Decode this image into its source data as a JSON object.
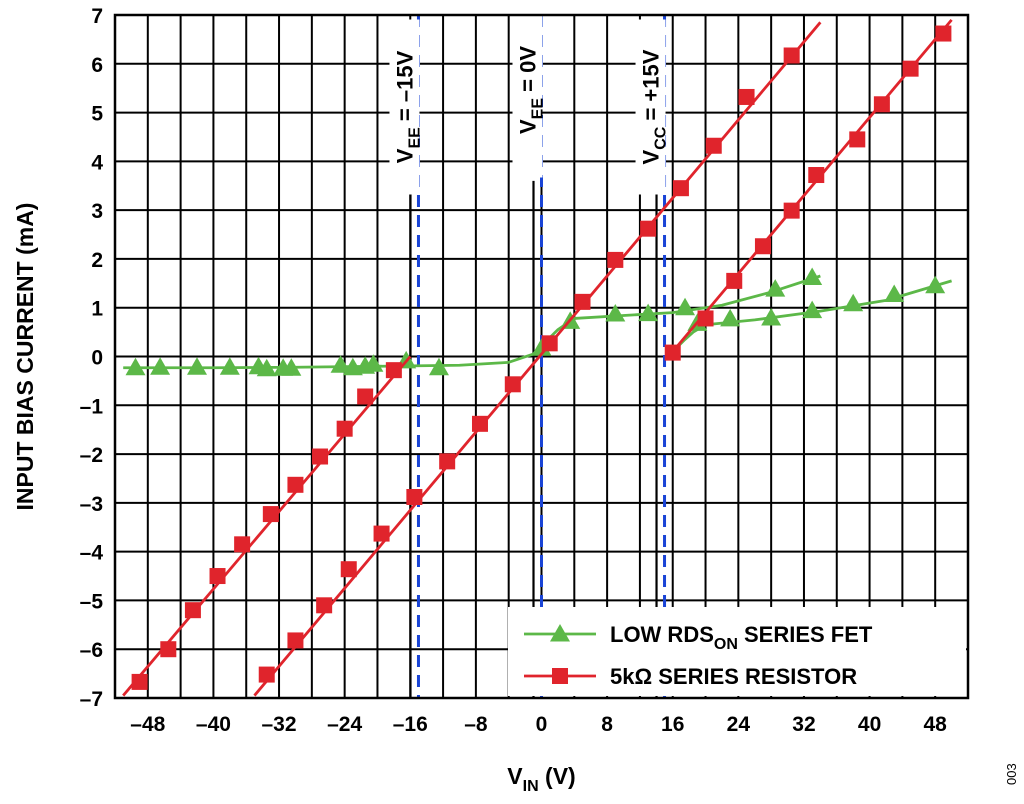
{
  "chart_data": {
    "type": "line",
    "title": "",
    "xlabel": {
      "main": "V",
      "sub": "IN",
      "unit": " (V)"
    },
    "ylabel": "INPUT BIAS CURRENT (mA)",
    "xlim": [
      -52,
      52
    ],
    "ylim": [
      -7,
      7
    ],
    "x_ticks": [
      -48,
      -40,
      -32,
      -24,
      -16,
      -8,
      0,
      8,
      16,
      24,
      32,
      40,
      48
    ],
    "x_tick_labels": [
      "–48",
      "–40",
      "–32",
      "–24",
      "–16",
      "–8",
      "0",
      "8",
      "16",
      "24",
      "32",
      "40",
      "48"
    ],
    "y_ticks": [
      -7,
      -6,
      -5,
      -4,
      -3,
      -2,
      -1,
      0,
      1,
      2,
      3,
      4,
      5,
      6,
      7
    ],
    "y_tick_labels": [
      "–7",
      "–6",
      "–5",
      "–4",
      "–3",
      "–2",
      "–1",
      "0",
      "1",
      "2",
      "3",
      "4",
      "5",
      "6",
      "7"
    ],
    "grid": true,
    "legend_position": "bottom-right",
    "reference_lines": [
      {
        "x": -15,
        "color": "#1a44d6",
        "label_main": "V",
        "label_sub": "EE",
        "label_rest": " = –15V"
      },
      {
        "x": 0,
        "color": "#1a44d6",
        "label_main": "V",
        "label_sub": "EE",
        "label_rest": " = 0V"
      },
      {
        "x": 15,
        "color": "#1a44d6",
        "label_main": "V",
        "label_sub": "CC",
        "label_rest": " = +15V"
      }
    ],
    "series": [
      {
        "name": "LOW RDS",
        "name_sub": "ON",
        "name_rest": " SERIES FET",
        "color": "#5cb848",
        "marker": "triangle",
        "traces": [
          {
            "line": [
              [
                -51,
                -0.23
              ],
              [
                -40,
                -0.23
              ],
              [
                -30,
                -0.22
              ],
              [
                -20,
                -0.2
              ],
              [
                -10,
                -0.18
              ],
              [
                -4,
                -0.12
              ],
              [
                -1,
                0.05
              ],
              [
                2,
                0.55
              ],
              [
                4,
                0.78
              ],
              [
                10,
                0.84
              ],
              [
                16,
                0.9
              ],
              [
                22,
                1.05
              ],
              [
                28,
                1.32
              ],
              [
                34,
                1.65
              ]
            ],
            "points": [
              [
                -49.5,
                -0.23
              ],
              [
                -46.5,
                -0.22
              ],
              [
                -42,
                -0.22
              ],
              [
                -38,
                -0.22
              ],
              [
                -34.5,
                -0.21
              ],
              [
                -33.5,
                -0.25
              ],
              [
                -31.5,
                -0.24
              ],
              [
                -30.5,
                -0.24
              ],
              [
                -24.5,
                -0.18
              ],
              [
                -23,
                -0.23
              ],
              [
                -21.5,
                -0.2
              ],
              [
                -20.5,
                -0.16
              ],
              [
                -16.5,
                -0.09
              ],
              [
                -12.5,
                -0.23
              ],
              [
                0,
                0.17
              ],
              [
                3.5,
                0.72
              ],
              [
                9,
                0.87
              ],
              [
                13,
                0.88
              ],
              [
                17.5,
                1.0
              ],
              [
                28.5,
                1.38
              ],
              [
                33,
                1.62
              ]
            ]
          },
          {
            "line": [
              [
                16,
                0.1
              ],
              [
                17.5,
                0.35
              ],
              [
                18.5,
                0.5
              ],
              [
                20,
                0.65
              ],
              [
                26,
                0.75
              ],
              [
                34,
                0.93
              ],
              [
                42,
                1.15
              ],
              [
                50,
                1.55
              ]
            ],
            "points": [
              [
                19,
                0.68
              ],
              [
                23,
                0.77
              ],
              [
                28,
                0.79
              ],
              [
                33,
                0.94
              ],
              [
                38,
                1.08
              ],
              [
                43,
                1.27
              ],
              [
                48,
                1.45
              ]
            ]
          }
        ]
      },
      {
        "name": "5kΩ SERIES RESISTOR",
        "color": "#e0242c",
        "marker": "square",
        "traces": [
          {
            "line": [
              [
                -51,
                -6.95
              ],
              [
                -16,
                0
              ]
            ],
            "points": [
              [
                -49,
                -6.67
              ],
              [
                -45.5,
                -6.0
              ],
              [
                -42.5,
                -5.2
              ],
              [
                -39.5,
                -4.5
              ],
              [
                -36.5,
                -3.85
              ],
              [
                -33,
                -3.23
              ],
              [
                -30,
                -2.63
              ],
              [
                -27,
                -2.05
              ],
              [
                -24,
                -1.48
              ],
              [
                -21.5,
                -0.82
              ],
              [
                -18,
                -0.28
              ]
            ]
          },
          {
            "line": [
              [
                -35,
                -6.95
              ],
              [
                34,
                6.85
              ]
            ],
            "points": [
              [
                -33.5,
                -6.52
              ],
              [
                -30,
                -5.82
              ],
              [
                -26.5,
                -5.1
              ],
              [
                -23.5,
                -4.36
              ],
              [
                -19.5,
                -3.63
              ],
              [
                -15.5,
                -2.88
              ],
              [
                -11.5,
                -2.15
              ],
              [
                -7.5,
                -1.38
              ],
              [
                -3.5,
                -0.57
              ],
              [
                1,
                0.27
              ],
              [
                5,
                1.12
              ],
              [
                9,
                1.98
              ],
              [
                13,
                2.62
              ],
              [
                17,
                3.45
              ],
              [
                21,
                4.32
              ],
              [
                25,
                5.32
              ],
              [
                30.5,
                6.17
              ]
            ]
          },
          {
            "line": [
              [
                15.5,
                0
              ],
              [
                50,
                6.9
              ]
            ],
            "points": [
              [
                16,
                0.08
              ],
              [
                20,
                0.78
              ],
              [
                23.5,
                1.55
              ],
              [
                27,
                2.26
              ],
              [
                30.5,
                2.99
              ],
              [
                33.5,
                3.72
              ],
              [
                38.5,
                4.45
              ],
              [
                41.5,
                5.17
              ],
              [
                45,
                5.9
              ],
              [
                49,
                6.62
              ]
            ]
          }
        ]
      }
    ]
  },
  "figure_id": "003"
}
